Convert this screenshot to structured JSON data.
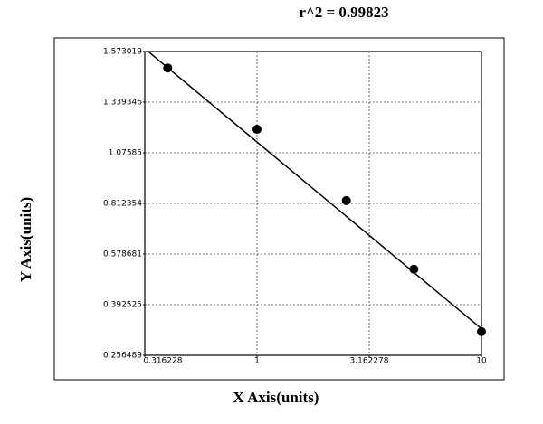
{
  "chart_data": {
    "type": "scatter",
    "title": "r^2 = 0.99823",
    "x_label": "X Axis(units)",
    "y_label": "Y Axis(units)",
    "x_scale": "log",
    "x": [
      0.4,
      1,
      2.5,
      5,
      10
    ],
    "values": [
      1.497,
      1.198,
      0.827,
      0.523,
      0.32
    ],
    "color": "#000000",
    "fit_line": {
      "x": [
        0.33,
        10
      ],
      "y": [
        1.57,
        0.328
      ]
    },
    "xlim": [
      0.316228,
      10
    ],
    "xticks": [
      0.316228,
      1,
      3.162278,
      10
    ],
    "ylim": [
      0.256489,
      1.573019
    ],
    "yticks": [
      0.256489,
      0.392525,
      0.578681,
      0.812354,
      1.07585,
      1.339346,
      1.573019
    ],
    "grid": true
  }
}
